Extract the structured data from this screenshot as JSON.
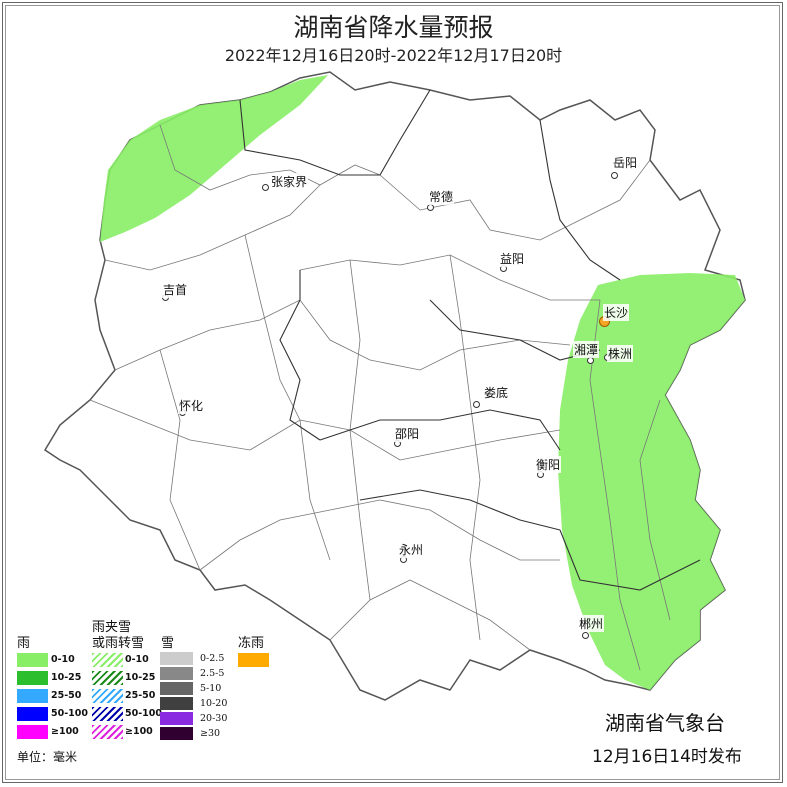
{
  "title": "湖南省降水量预报",
  "subtitle": "2022年12月16日20时-2022年12月17日20时",
  "cities": [
    {
      "name": "张家界",
      "capital": false
    },
    {
      "name": "岳阳",
      "capital": false
    },
    {
      "name": "常德",
      "capital": false
    },
    {
      "name": "益阳",
      "capital": false
    },
    {
      "name": "吉首",
      "capital": false
    },
    {
      "name": "长沙",
      "capital": true
    },
    {
      "name": "湘潭",
      "capital": false
    },
    {
      "name": "株洲",
      "capital": false
    },
    {
      "name": "娄底",
      "capital": false
    },
    {
      "name": "怀化",
      "capital": false
    },
    {
      "name": "邵阳",
      "capital": false
    },
    {
      "name": "衡阳",
      "capital": false
    },
    {
      "name": "永州",
      "capital": false
    },
    {
      "name": "郴州",
      "capital": false
    }
  ],
  "forecast_areas": [
    {
      "region": "northwest",
      "category": "雨 0-10",
      "color": "#88ee66"
    },
    {
      "region": "east",
      "category": "雨 0-10",
      "color": "#88ee66"
    }
  ],
  "legend": {
    "rain": {
      "title": "雨",
      "items": [
        {
          "label": "0-10",
          "color": "#88ee66"
        },
        {
          "label": "10-25",
          "color": "#2dbe2d"
        },
        {
          "label": "25-50",
          "color": "#33aaff"
        },
        {
          "label": "50-100",
          "color": "#0000ff"
        },
        {
          "label": "≥100",
          "color": "#ff00ff"
        }
      ]
    },
    "sleet": {
      "title_line1": "雨夹雪",
      "title_line2": "或雨转雪",
      "items": [
        {
          "label": "0-10",
          "color": "#88ee66"
        },
        {
          "label": "10-25",
          "color": "#1a8a1a"
        },
        {
          "label": "25-50",
          "color": "#33aaff"
        },
        {
          "label": "50-100",
          "color": "#0000aa"
        },
        {
          "label": "≥100",
          "color": "#dd22dd"
        }
      ]
    },
    "snow": {
      "title": "雪",
      "items": [
        {
          "label": "0-2.5",
          "color": "#cccccc"
        },
        {
          "label": "2.5-5",
          "color": "#888888"
        },
        {
          "label": "5-10",
          "color": "#666666"
        },
        {
          "label": "10-20",
          "color": "#404040"
        },
        {
          "label": "20-30",
          "color": "#8a2be2"
        },
        {
          "label": "≥30",
          "color": "#300030"
        }
      ]
    },
    "freezing_rain": {
      "title": "冻雨",
      "color": "#ffaa00"
    },
    "unit": "单位：毫米"
  },
  "issuer": "湖南省气象台",
  "issue_time": "12月16日14时发布"
}
